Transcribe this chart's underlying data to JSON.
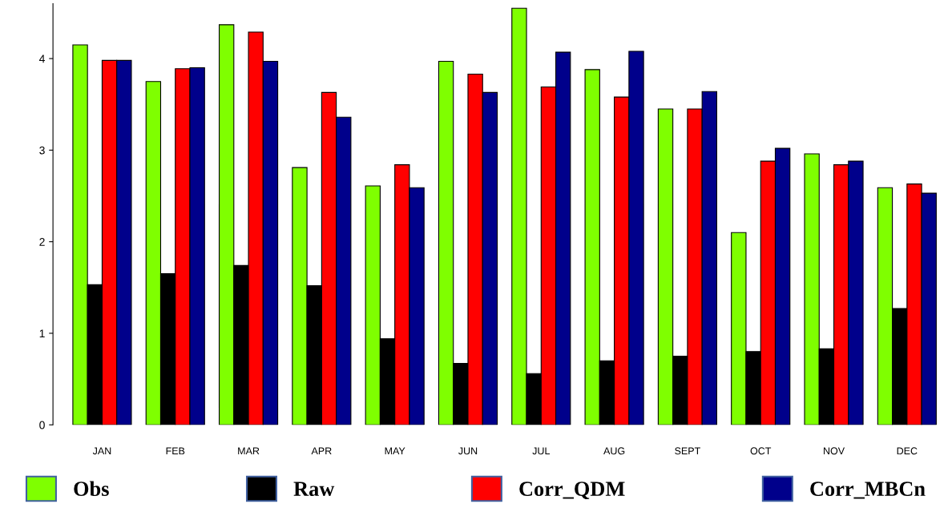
{
  "chart_data": {
    "type": "bar",
    "categories": [
      "JAN",
      "FEB",
      "MAR",
      "APR",
      "MAY",
      "JUN",
      "JUL",
      "AUG",
      "SEPT",
      "OCT",
      "NOV",
      "DEC"
    ],
    "series": [
      {
        "name": "Obs",
        "color": "#7fff00",
        "values": [
          4.15,
          3.75,
          4.37,
          2.81,
          2.61,
          3.97,
          4.55,
          3.88,
          3.45,
          2.1,
          2.96,
          2.59
        ]
      },
      {
        "name": "Raw",
        "color": "#000000",
        "values": [
          1.53,
          1.65,
          1.74,
          1.52,
          0.94,
          0.67,
          0.56,
          0.7,
          0.75,
          0.8,
          0.83,
          1.27
        ]
      },
      {
        "name": "Corr_QDM",
        "color": "#ff0000",
        "values": [
          3.98,
          3.89,
          4.29,
          3.63,
          2.84,
          3.83,
          3.69,
          3.58,
          3.45,
          2.88,
          2.84,
          2.63
        ]
      },
      {
        "name": "Corr_MBCn",
        "color": "#00008b",
        "values": [
          3.98,
          3.9,
          3.97,
          3.36,
          2.59,
          3.63,
          4.07,
          4.08,
          3.64,
          3.02,
          2.88,
          2.53
        ]
      }
    ],
    "ylim": [
      0,
      4.6
    ],
    "yticks": [
      0,
      1,
      2,
      3,
      4
    ],
    "grid": false,
    "legend": "bottom"
  }
}
